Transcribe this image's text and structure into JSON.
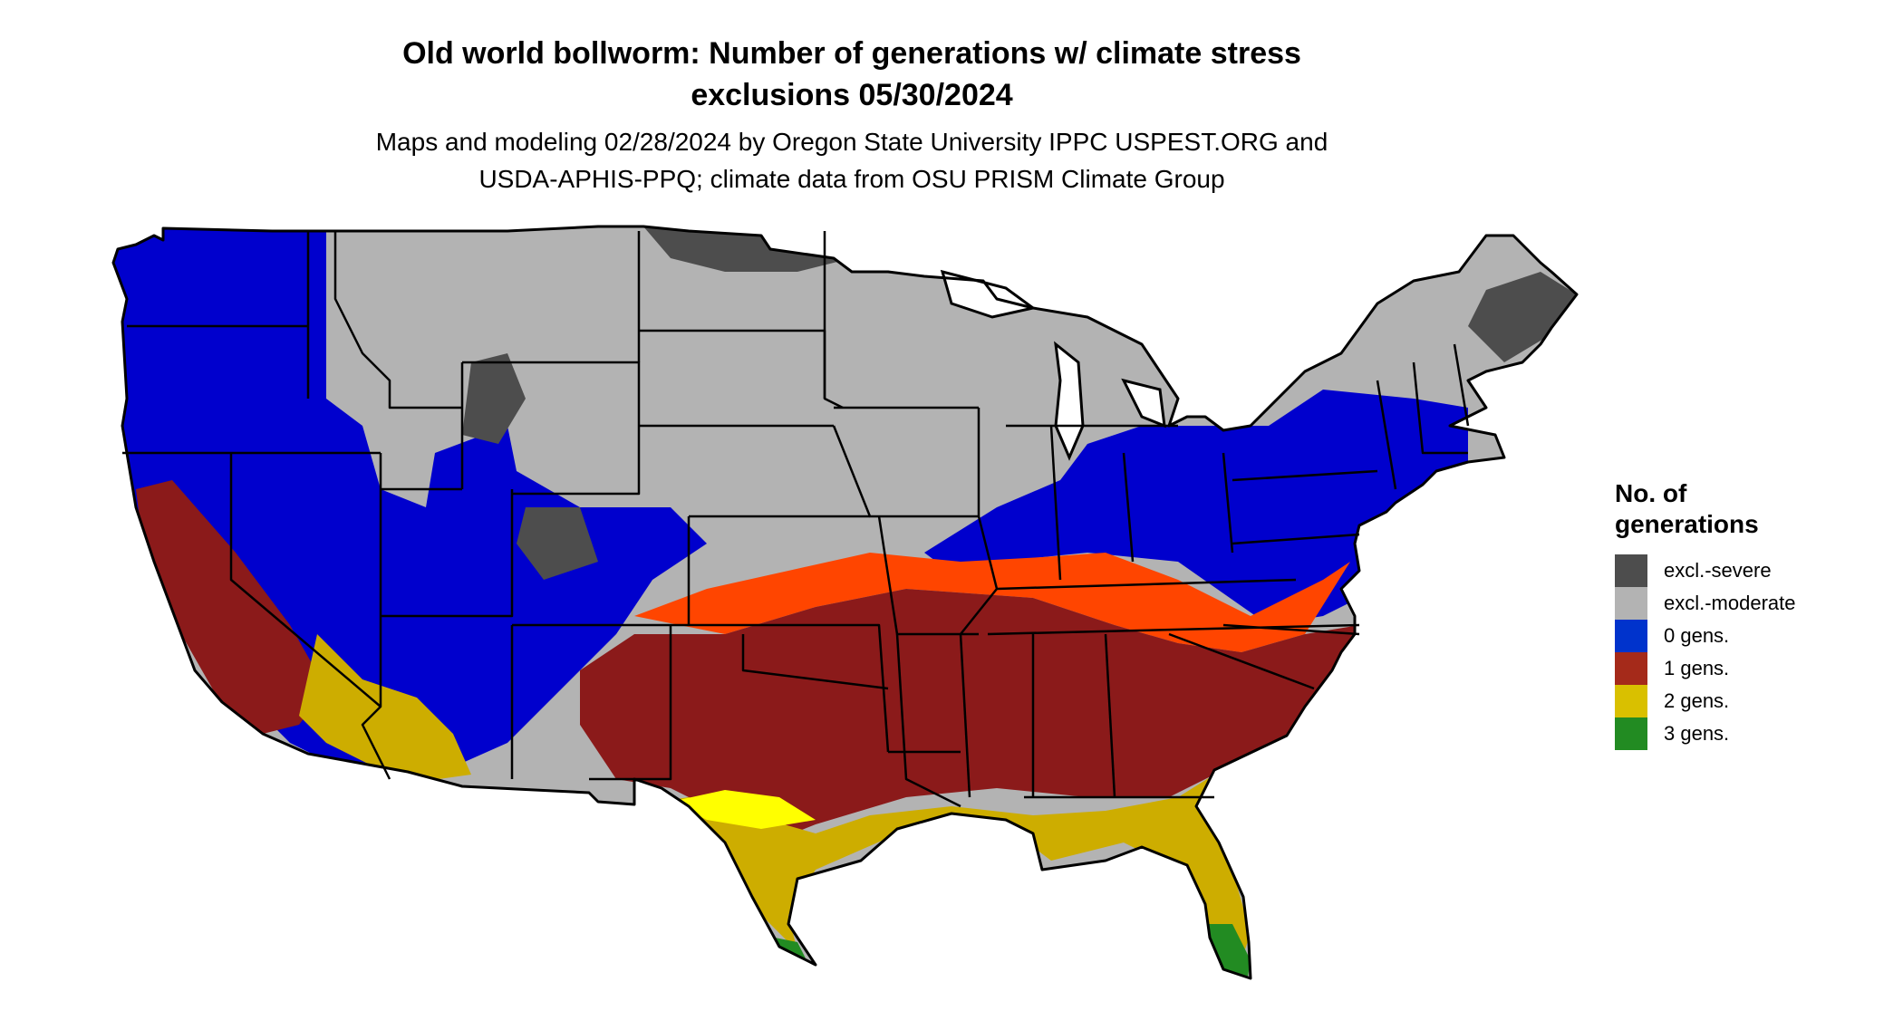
{
  "map": {
    "title_line1": "Old world bollworm: Number of generations w/ climate stress",
    "title_line2": "exclusions 05/30/2024",
    "subtitle_line1": "Maps and modeling 02/28/2024 by Oregon State University IPPC USPEST.ORG and",
    "subtitle_line2": "USDA-APHIS-PPQ; climate data from OSU PRISM Climate Group",
    "region": "Contiguous United States",
    "categories": [
      {
        "name": "excl.-severe",
        "color": "#4d4d4d"
      },
      {
        "name": "excl.-moderate",
        "color": "#b3b3b3"
      },
      {
        "name": "0 gens.",
        "color": "#0000cd"
      },
      {
        "name": "1 gens.",
        "color": "#8b1a1a"
      },
      {
        "name": "2 gens.",
        "color": "#cdad00"
      },
      {
        "name": "3 gens.",
        "color": "#228b22"
      }
    ],
    "transition_color": "#ff4500",
    "bright_yellow": "#ffff00",
    "border_color": "#000000"
  },
  "legend": {
    "title": "No. of generations",
    "items": [
      {
        "label": "excl.-severe",
        "color": "#4d4d4d"
      },
      {
        "label": "excl.-moderate",
        "color": "#b3b3b3"
      },
      {
        "label": "0 gens.",
        "color": "#0033cc"
      },
      {
        "label": "1 gens.",
        "color": "#a52a1a"
      },
      {
        "label": "2 gens.",
        "color": "#d9c000"
      },
      {
        "label": "3 gens.",
        "color": "#228b22"
      }
    ]
  }
}
